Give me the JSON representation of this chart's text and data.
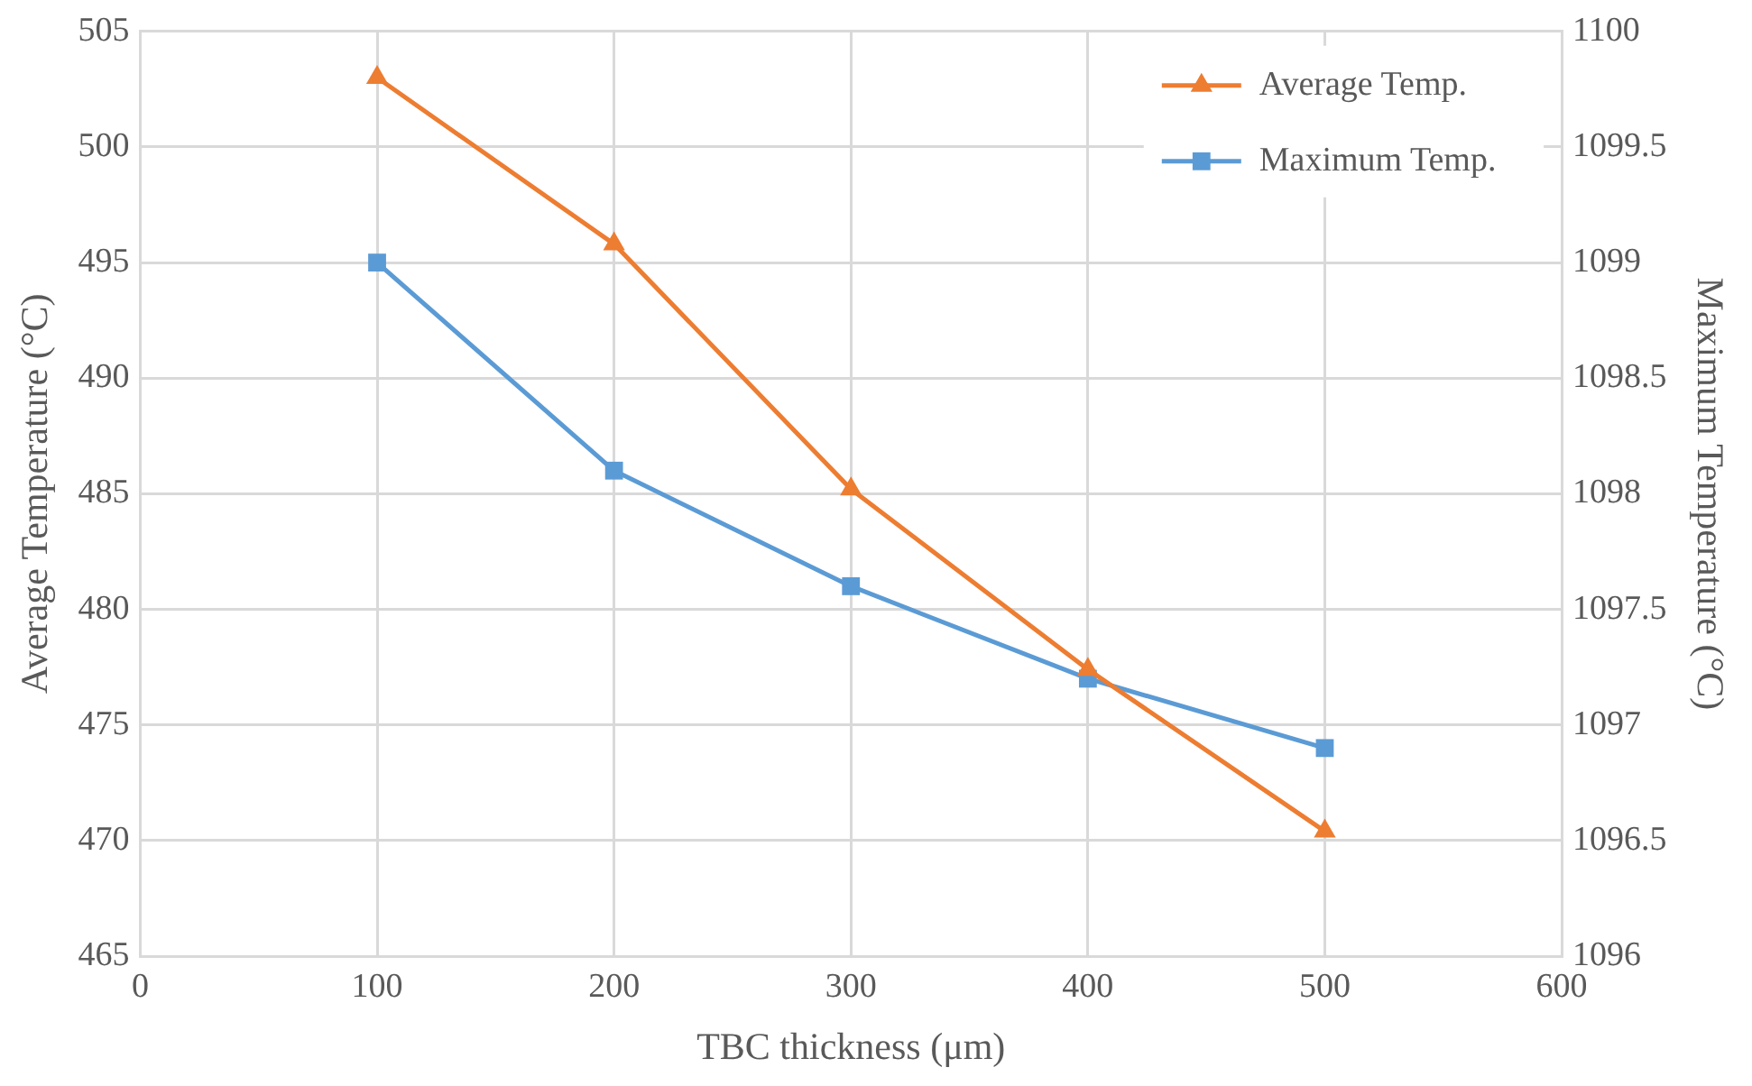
{
  "chart_data": {
    "type": "line",
    "xlabel": "TBC thickness (μm)",
    "ylabel": "Average Temperature (°C)",
    "y2label": "Maximum Temperature (°C)",
    "x": [
      100,
      200,
      300,
      400,
      500
    ],
    "series": [
      {
        "name": "Average Temp.",
        "color": "#ed7d31",
        "marker": "triangle",
        "values": [
          503.0,
          495.8,
          485.2,
          477.4,
          470.4
        ]
      },
      {
        "name": "Maximum Temp.",
        "color": "#5b9bd5",
        "marker": "square",
        "axis": "y2",
        "values": [
          1099.0,
          1098.1,
          1097.6,
          1097.2,
          1096.9
        ]
      }
    ],
    "xlim": [
      0,
      600
    ],
    "xticks": [
      0,
      100,
      200,
      300,
      400,
      500,
      600
    ],
    "ylim": [
      465,
      505
    ],
    "yticks": [
      465,
      470,
      475,
      480,
      485,
      490,
      495,
      500,
      505
    ],
    "y2lim": [
      1096,
      1100
    ],
    "y2ticks": [
      1096,
      {
        "value": 1096.5,
        "label": "1096.5"
      },
      1097,
      {
        "value": 1097.5,
        "label": "1097.5"
      },
      1098,
      {
        "value": 1098.5,
        "label": "1098.5"
      },
      1099,
      {
        "value": 1099.5,
        "label": "1099.5"
      },
      1100
    ],
    "grid": true,
    "legend": "top right",
    "line_style": "solid"
  }
}
